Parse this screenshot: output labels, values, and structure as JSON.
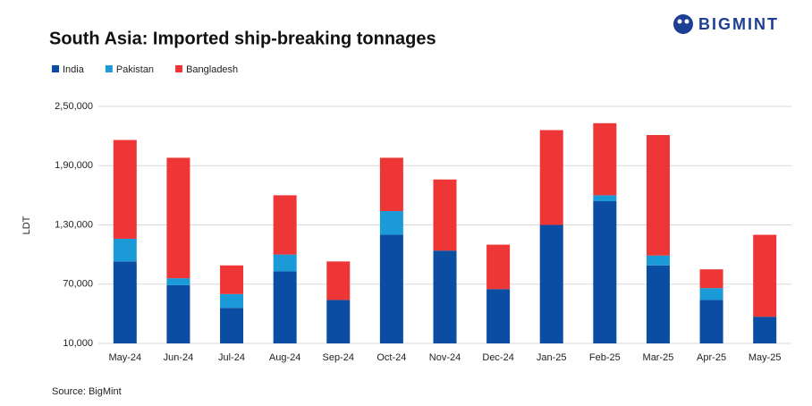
{
  "brand": "BIGMINT",
  "chart_data": {
    "type": "stacked_bar",
    "title": "South Asia: Imported ship-breaking tonnages",
    "y_label": "LDT",
    "source": "Source: BigMint",
    "categories": [
      "May-24",
      "Jun-24",
      "Jul-24",
      "Aug-24",
      "Sep-24",
      "Oct-24",
      "Nov-24",
      "Dec-24",
      "Jan-25",
      "Feb-25",
      "Mar-25",
      "Apr-25",
      "May-25"
    ],
    "series": [
      {
        "name": "India",
        "color": "#0a4da2",
        "values": [
          83000,
          59000,
          36000,
          73000,
          44000,
          110000,
          94000,
          55000,
          120000,
          144000,
          79000,
          44000,
          27000
        ]
      },
      {
        "name": "Pakistan",
        "color": "#1a9ad6",
        "values": [
          23000,
          7000,
          14000,
          17000,
          0,
          24000,
          0,
          0,
          0,
          6000,
          10000,
          12000,
          0
        ]
      },
      {
        "name": "Bangladesh",
        "color": "#ef3636",
        "values": [
          100000,
          122000,
          29000,
          60000,
          39000,
          54000,
          72000,
          45000,
          96000,
          73000,
          122000,
          19000,
          83000
        ]
      }
    ],
    "ylim": [
      10000,
      250000
    ],
    "yticks": [
      {
        "value": 10000,
        "label": "10,000"
      },
      {
        "value": 70000,
        "label": "70,000"
      },
      {
        "value": 130000,
        "label": "1,30,000"
      },
      {
        "value": 190000,
        "label": "1,90,000"
      },
      {
        "value": 250000,
        "label": "2,50,000"
      }
    ],
    "grid": true,
    "legend": "top-left"
  }
}
